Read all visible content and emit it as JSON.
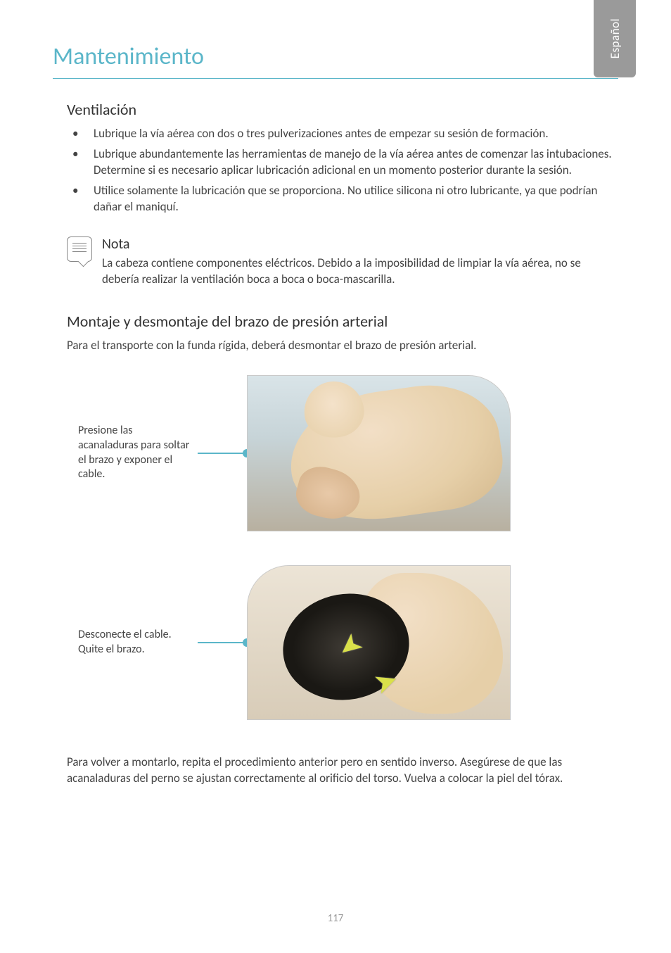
{
  "language_tab": "Español",
  "title": "Mantenimiento",
  "section_ventilation": {
    "heading": "Ventilación",
    "bullets": [
      "Lubrique la vía aérea con dos o tres pulverizaciones antes de empezar su sesión de formación.",
      "Lubrique abundantemente las herramientas de manejo de la vía aérea antes de comenzar las intubaciones. Determine si es necesario aplicar lubricación adicional en un momento posterior durante la sesión.",
      "Utilice solamente la lubricación que se proporciona. No utilice silicona ni otro lubricante, ya que podrían dañar el maniquí."
    ]
  },
  "note": {
    "title": "Nota",
    "body": "La cabeza contiene componentes eléctricos. Debido a la imposibilidad de limpiar la vía aérea, no se debería realizar la ventilación boca a boca o boca-mascarilla."
  },
  "section_arm": {
    "heading": "Montaje y desmontaje del brazo de presión arterial",
    "intro": "Para el transporte con la funda rígida, deberá desmontar el brazo de presión arterial.",
    "figure1_caption": "Presione las acanaladuras para soltar el brazo y exponer el cable.",
    "figure2_caption": "Desconecte el cable. Quite el brazo.",
    "closing": "Para volver a montarlo, repita el procedimiento anterior pero en sentido inverso. Asegúrese de que las acanaladuras del perno se ajustan correctamente al orificio del torso. Vuelva a colocar la piel del tórax."
  },
  "page_number": "117",
  "colors": {
    "accent": "#5bb6c9",
    "tab_bg": "#9a9a9a",
    "text": "#3a3a3a",
    "arrow": "#d9e04a"
  },
  "typography": {
    "title_fontsize": 34,
    "heading_fontsize": 22,
    "body_fontsize": 17
  }
}
